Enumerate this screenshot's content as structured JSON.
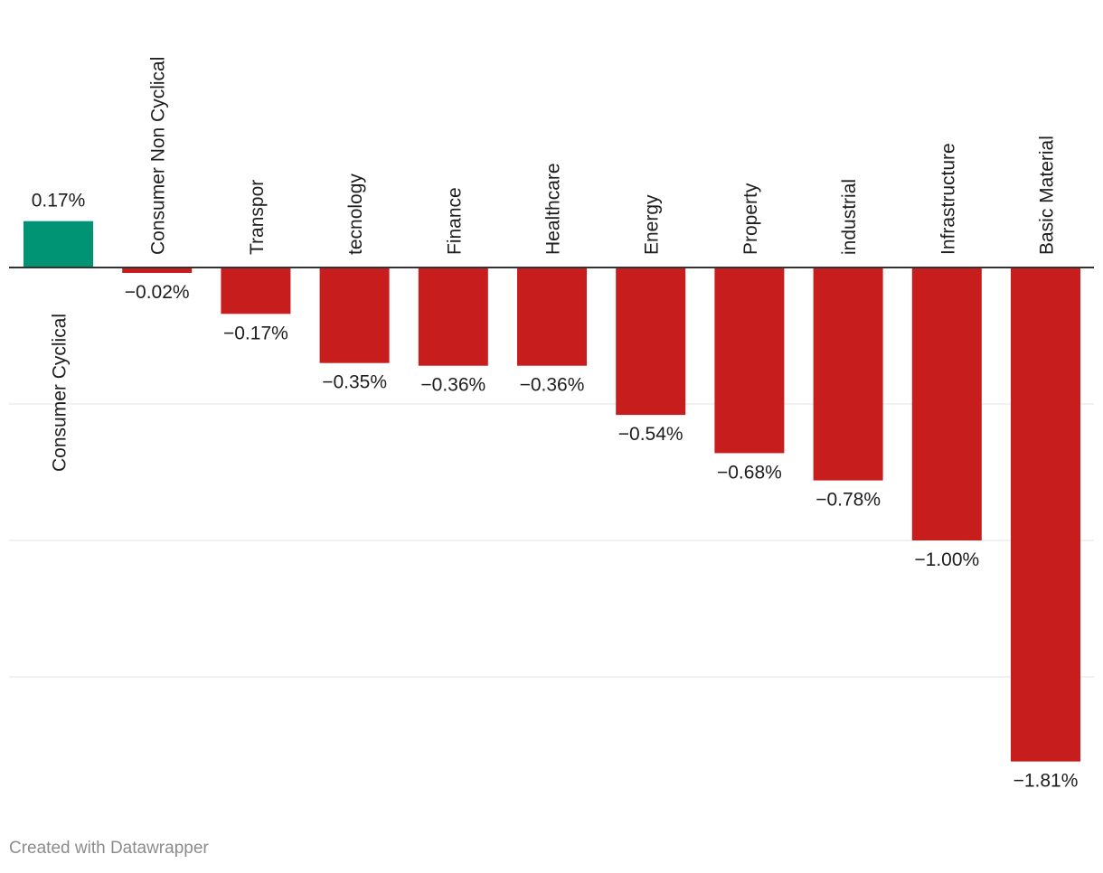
{
  "footer": {
    "credit": "Created with Datawrapper"
  },
  "colors": {
    "positive": "#009374",
    "negative": "#c71e1d",
    "grid": "#e3e3e3",
    "baseline": "#333333"
  },
  "chart_data": {
    "type": "bar",
    "orientation": "vertical",
    "categories": [
      "Consumer Cyclical",
      "Consumer Non Cyclical",
      "Transpor",
      "tecnology",
      "Finance",
      "Healthcare",
      "Energy",
      "Property",
      "industrial",
      "Infrastructure",
      "Basic Material"
    ],
    "values": [
      0.17,
      -0.02,
      -0.17,
      -0.35,
      -0.36,
      -0.36,
      -0.54,
      -0.68,
      -0.78,
      -1.0,
      -1.81
    ],
    "value_labels": [
      "0.17%",
      "−0.02%",
      "−0.17%",
      "−0.35%",
      "−0.36%",
      "−0.36%",
      "−0.54%",
      "−0.68%",
      "−0.78%",
      "−1.00%",
      "−1.81%"
    ],
    "unit": "%",
    "ylim": [
      -1.81,
      0.17
    ],
    "gridlines": [
      -0.5,
      -1.0,
      -1.5
    ],
    "grid": true,
    "legend": "none",
    "title": "",
    "xlabel": "",
    "ylabel": ""
  }
}
